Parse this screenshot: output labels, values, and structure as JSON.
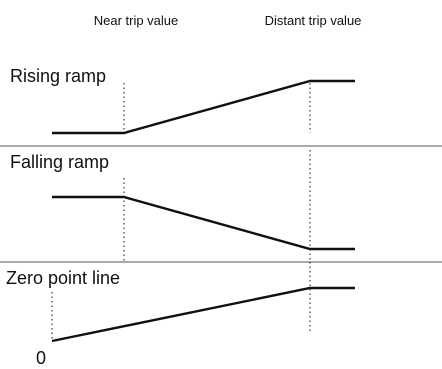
{
  "header": {
    "near_label": "Near trip value",
    "distant_label": "Distant trip value"
  },
  "panels": [
    {
      "key": "rising",
      "title": "Rising ramp"
    },
    {
      "key": "falling",
      "title": "Falling ramp"
    },
    {
      "key": "zero",
      "title": "Zero point line",
      "origin_label": "0"
    }
  ]
}
